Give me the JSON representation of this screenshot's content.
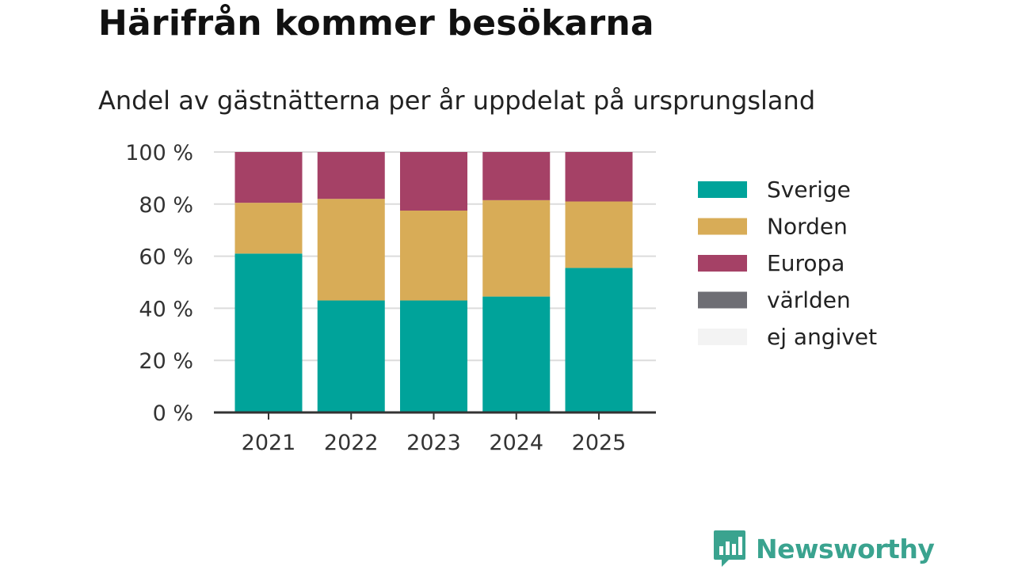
{
  "title": "Härifrån kommer besökarna",
  "subtitle": "Andel av gästnätterna per år uppdelat på ursprungsland",
  "brand": {
    "name": "Newsworthy",
    "color": "#3aa38f"
  },
  "chart_data": {
    "type": "bar",
    "stacked": true,
    "categories": [
      "2021",
      "2022",
      "2023",
      "2024",
      "2025"
    ],
    "series": [
      {
        "name": "Sverige",
        "color": "#00a39a",
        "values": [
          61,
          43,
          43,
          44.5,
          55.5
        ]
      },
      {
        "name": "Norden",
        "color": "#d8ac57",
        "values": [
          19.5,
          39,
          34.5,
          37,
          25.5
        ]
      },
      {
        "name": "Europa",
        "color": "#a54166",
        "values": [
          19.5,
          18,
          22.5,
          18.5,
          19
        ]
      },
      {
        "name": "världen",
        "color": "#6e6e74",
        "values": [
          0,
          0,
          0,
          0,
          0
        ]
      },
      {
        "name": "ej angivet",
        "color": "#f3f3f3",
        "values": [
          0,
          0,
          0,
          0,
          0
        ]
      }
    ],
    "yticks": [
      "0 %",
      "20 %",
      "40 %",
      "60 %",
      "80 %",
      "100 %"
    ],
    "ylim": [
      0,
      100
    ],
    "xlabel": "",
    "ylabel": "",
    "grid": true,
    "legend_position": "right"
  }
}
